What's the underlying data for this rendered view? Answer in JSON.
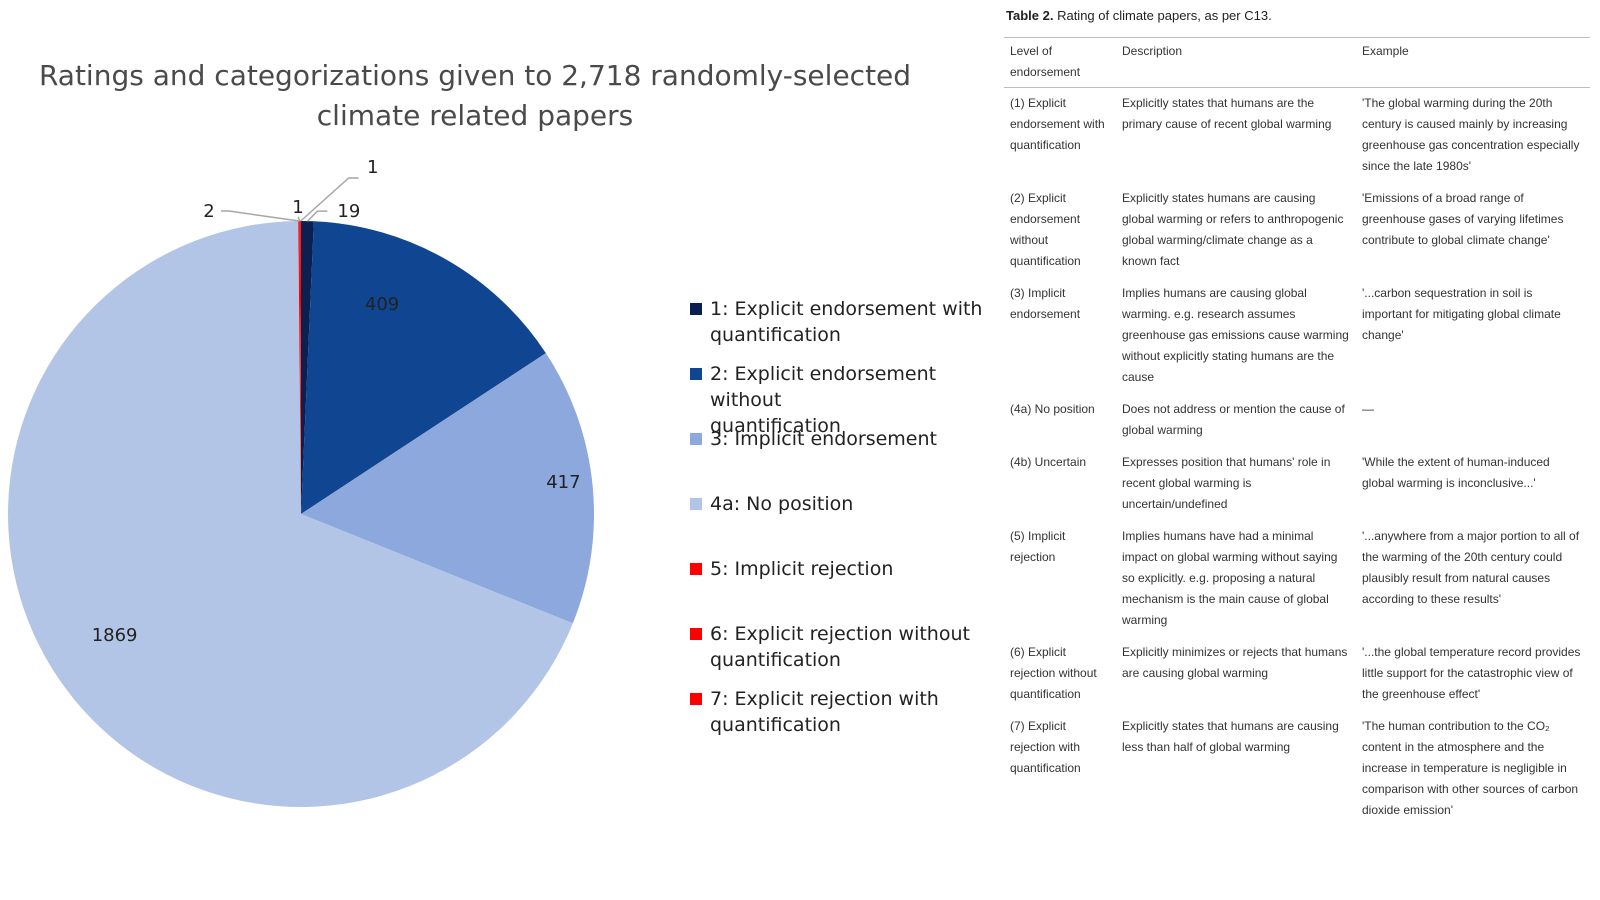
{
  "chart_data": {
    "type": "pie",
    "title": "Ratings and categorizations given to 2,718 randomly-selected climate related papers",
    "slices": [
      {
        "name": "1: Explicit endorsement with quantification",
        "value": 19,
        "color": "#0b2050",
        "label": "19"
      },
      {
        "name": "2: Explicit endorsement without quantification",
        "value": 409,
        "color": "#104591",
        "label": "409"
      },
      {
        "name": "3: Implicit endorsement",
        "value": 417,
        "color": "#8da8dc",
        "label": "417"
      },
      {
        "name": "4a: No position",
        "value": 1869,
        "color": "#b3c5e6",
        "label": "1869"
      },
      {
        "name": "5: Implicit rejection",
        "value": 2,
        "color": "#ff0000",
        "label": "2"
      },
      {
        "name": "6: Explicit rejection without quantification",
        "value": 1,
        "color": "#ff0000",
        "label": "1"
      },
      {
        "name": "7: Explicit rejection with quantification",
        "value": 1,
        "color": "#ff0000",
        "label": "1"
      }
    ],
    "legend_position": "right"
  },
  "legend": {
    "items": [
      {
        "label_line1": "1: Explicit endorsement with",
        "label_line2": "quantification",
        "color": "#0b2050"
      },
      {
        "label_line1": "2: Explicit endorsement without",
        "label_line2": "quantification",
        "color": "#104591"
      },
      {
        "label_line1": "3: Implicit endorsement",
        "label_line2": "",
        "color": "#8da8dc"
      },
      {
        "label_line1": "4a: No position",
        "label_line2": "",
        "color": "#b3c5e6"
      },
      {
        "label_line1": "5: Implicit rejection",
        "label_line2": "",
        "color": "#ff0000"
      },
      {
        "label_line1": "6: Explicit rejection without",
        "label_line2": "quantification",
        "color": "#ff0000"
      },
      {
        "label_line1": "7: Explicit rejection with",
        "label_line2": "quantification",
        "color": "#ff0000"
      }
    ]
  },
  "table": {
    "caption_bold": "Table 2.",
    "caption_text": "Rating of climate papers, as per C13.",
    "headers": [
      "Level of endorsement",
      "Description",
      "Example"
    ],
    "rows": [
      [
        "(1) Explicit endorsement with quantification",
        "Explicitly states that humans are the primary cause of recent global warming",
        "'The global warming during the 20th century is caused mainly by increasing greenhouse gas concentration especially since the late 1980s'"
      ],
      [
        "(2) Explicit endorsement without quantification",
        "Explicitly states humans are causing global warming or refers to anthropogenic global warming/climate change as a known fact",
        "'Emissions of a broad range of greenhouse gases of varying lifetimes contribute to global climate change'"
      ],
      [
        "(3) Implicit endorsement",
        "Implies humans are causing global warming. e.g. research assumes greenhouse gas emissions cause warming without explicitly stating humans are the cause",
        "'...carbon sequestration in soil is important for mitigating global climate change'"
      ],
      [
        "(4a) No position",
        "Does not address or mention the cause of global warming",
        "—"
      ],
      [
        "(4b) Uncertain",
        "Expresses position that humans' role in recent global warming is uncertain/undefined",
        "'While the extent of human-induced global warming is inconclusive...'"
      ],
      [
        "(5) Implicit rejection",
        "Implies humans have had a minimal impact on global warming without saying so explicitly. e.g. proposing a natural mechanism is the main cause of global warming",
        "'...anywhere from a major portion to all of the warming of the 20th century could plausibly result from natural causes according to these results'"
      ],
      [
        "(6) Explicit rejection without quantification",
        "Explicitly minimizes or rejects that humans are causing global warming",
        "'...the global temperature record provides little support for the catastrophic view of the greenhouse effect'"
      ],
      [
        "(7) Explicit rejection with quantification",
        "Explicitly states that humans are causing less than half of global warming",
        "'The human contribution to the CO₂ content in the atmosphere and the increase in temperature is negligible in comparison with other sources of carbon dioxide emission'"
      ]
    ]
  }
}
